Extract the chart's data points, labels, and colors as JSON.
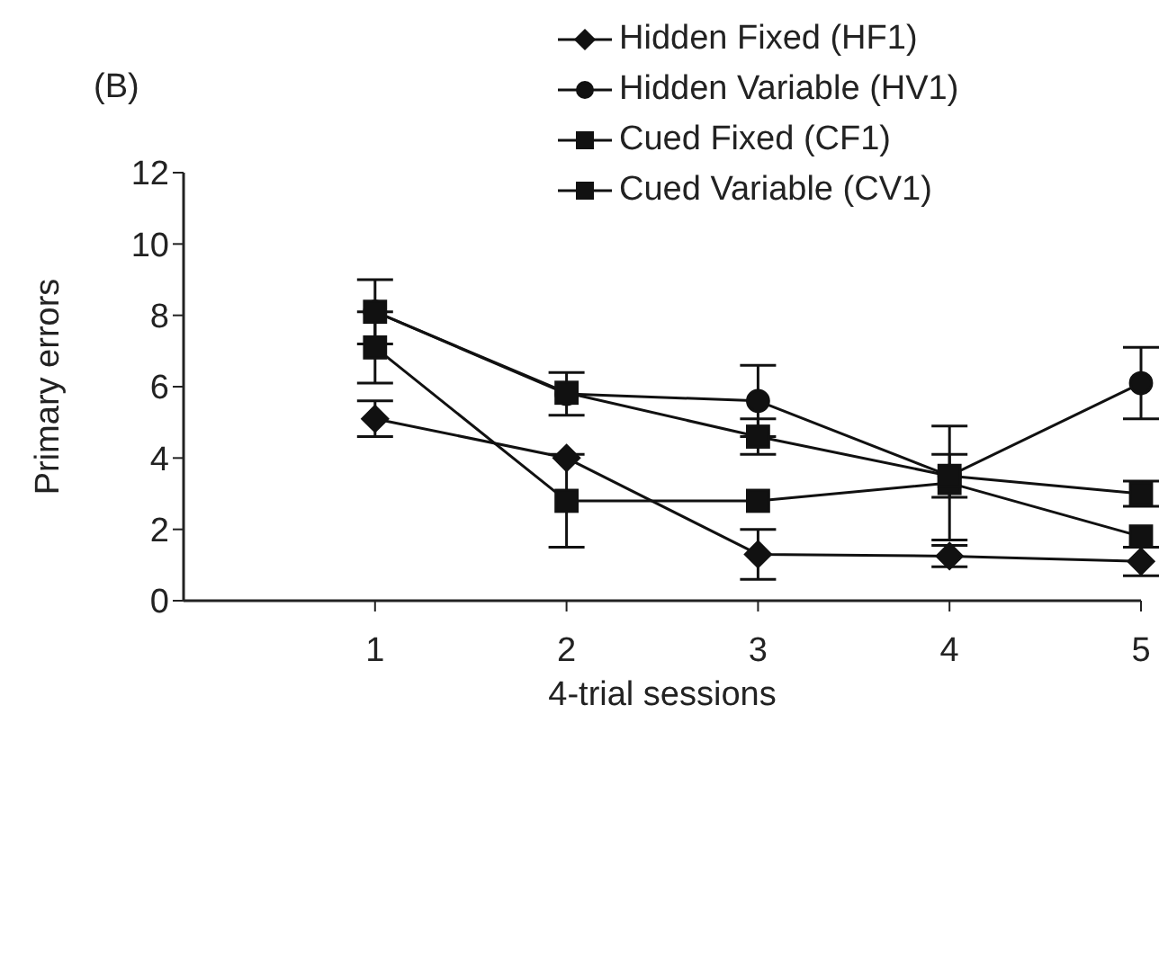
{
  "chart_data": {
    "type": "line",
    "title": "(B)",
    "xlabel": "4-trial sessions",
    "ylabel": "Primary errors",
    "x": [
      1,
      2,
      3,
      4,
      5
    ],
    "xlim": [
      0,
      5
    ],
    "xticks": [
      1,
      2,
      3,
      4,
      5
    ],
    "ylim": [
      0,
      12
    ],
    "yticks": [
      0,
      2,
      4,
      6,
      8,
      10,
      12
    ],
    "grid": false,
    "legend": "top right",
    "series": [
      {
        "name": "Hidden Fixed (HF1)",
        "color": "#111111",
        "marker": "diamond",
        "values": [
          5.1,
          4.0,
          1.3,
          1.25,
          1.1
        ],
        "errors": [
          0.5,
          null,
          0.7,
          0.3,
          0.4
        ]
      },
      {
        "name": "Hidden Variable (HV1)",
        "color": "#111111",
        "marker": "circle",
        "values": [
          8.1,
          5.8,
          5.6,
          3.5,
          6.1
        ],
        "errors": [
          null,
          0.6,
          1.0,
          0.6,
          1.0
        ]
      },
      {
        "name": "Cued Fixed (CF1)",
        "color": "#111111",
        "marker": "square",
        "values": [
          7.1,
          2.8,
          2.8,
          3.3,
          1.8
        ],
        "errors": [
          1.0,
          1.3,
          null,
          1.6,
          null
        ]
      },
      {
        "name": "Cued Variable (CV1)",
        "color": "#111111",
        "marker": "square",
        "values": [
          8.1,
          5.83,
          4.6,
          3.5,
          3.0
        ],
        "errors": [
          0.9,
          null,
          0.5,
          null,
          0.35
        ]
      }
    ]
  }
}
